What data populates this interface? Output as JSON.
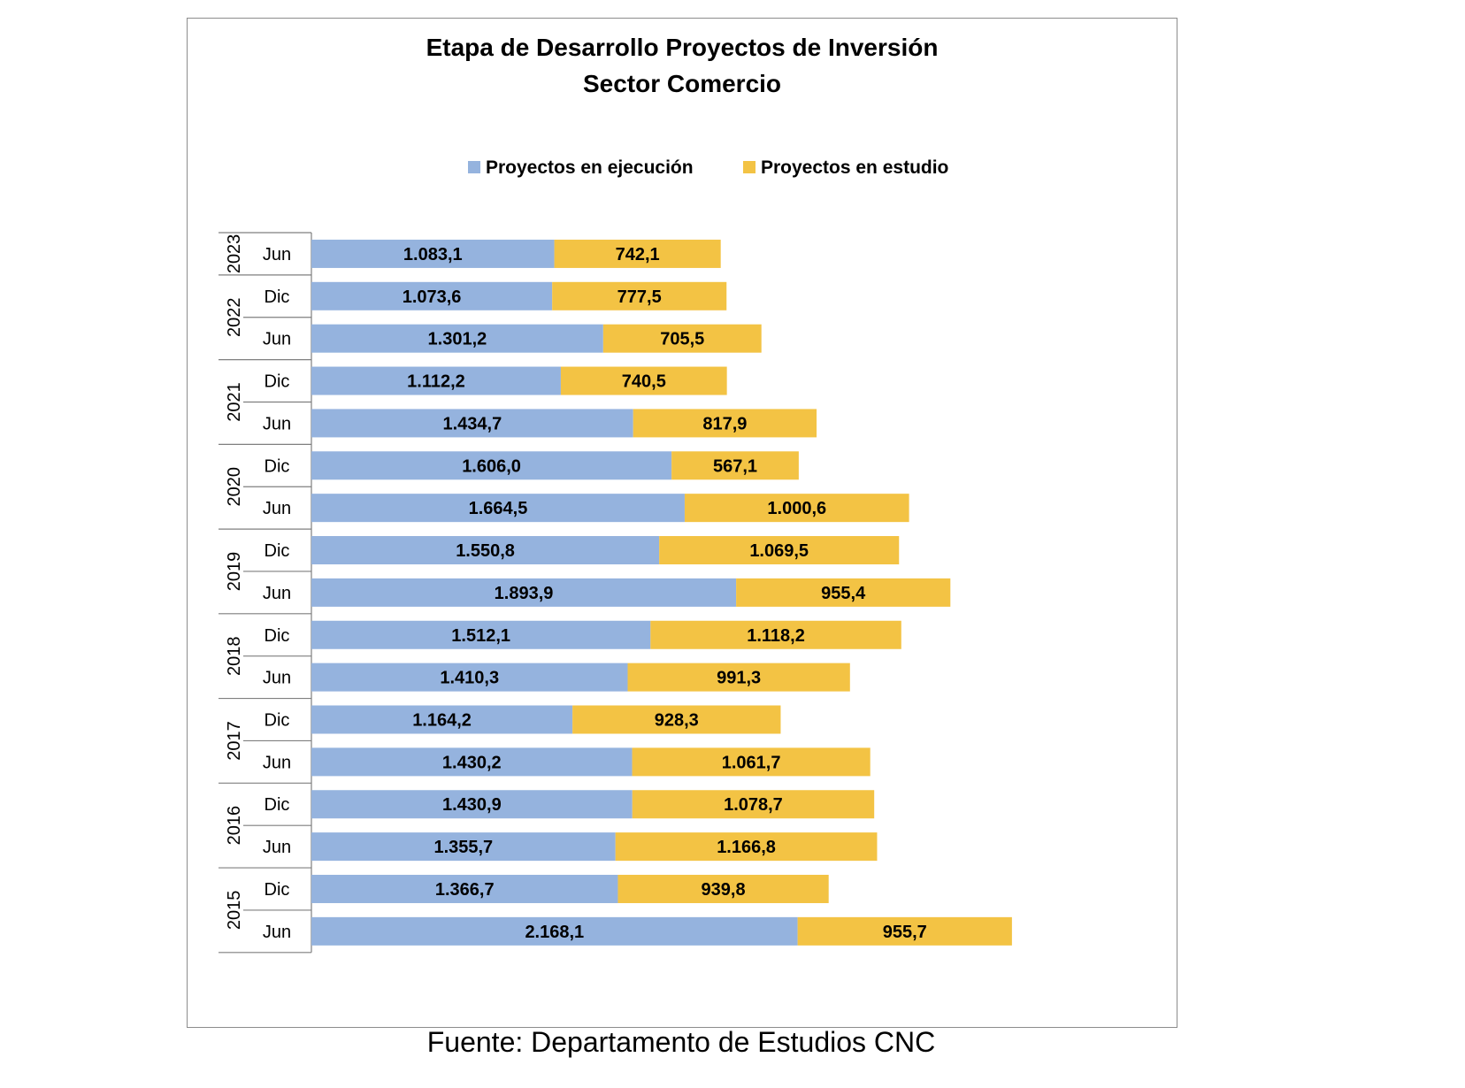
{
  "chart_data": {
    "type": "bar",
    "orientation": "horizontal",
    "stacked": true,
    "title": "Etapa de Desarrollo Proyectos de Inversión",
    "subtitle": "Sector Comercio",
    "legend_position": "top",
    "grid": false,
    "xlim": [
      0,
      3200
    ],
    "series": [
      {
        "name": "Proyectos en ejecución",
        "color": "#95b3de"
      },
      {
        "name": "Proyectos en estudio",
        "color": "#f3c344"
      }
    ],
    "groups": [
      {
        "year": "2023",
        "rows": [
          {
            "period": "Jun",
            "values": [
              1083.1,
              742.1
            ],
            "labels": [
              "1.083,1",
              "742,1"
            ]
          }
        ]
      },
      {
        "year": "2022",
        "rows": [
          {
            "period": "Dic",
            "values": [
              1073.6,
              777.5
            ],
            "labels": [
              "1.073,6",
              "777,5"
            ]
          },
          {
            "period": "Jun",
            "values": [
              1301.2,
              705.5
            ],
            "labels": [
              "1.301,2",
              "705,5"
            ]
          }
        ]
      },
      {
        "year": "2021",
        "rows": [
          {
            "period": "Dic",
            "values": [
              1112.2,
              740.5
            ],
            "labels": [
              "1.112,2",
              "740,5"
            ]
          },
          {
            "period": "Jun",
            "values": [
              1434.7,
              817.9
            ],
            "labels": [
              "1.434,7",
              "817,9"
            ]
          }
        ]
      },
      {
        "year": "2020",
        "rows": [
          {
            "period": "Dic",
            "values": [
              1606.0,
              567.1
            ],
            "labels": [
              "1.606,0",
              "567,1"
            ]
          },
          {
            "period": "Jun",
            "values": [
              1664.5,
              1000.6
            ],
            "labels": [
              "1.664,5",
              "1.000,6"
            ]
          }
        ]
      },
      {
        "year": "2019",
        "rows": [
          {
            "period": "Dic",
            "values": [
              1550.8,
              1069.5
            ],
            "labels": [
              "1.550,8",
              "1.069,5"
            ]
          },
          {
            "period": "Jun",
            "values": [
              1893.9,
              955.4
            ],
            "labels": [
              "1.893,9",
              "955,4"
            ]
          }
        ]
      },
      {
        "year": "2018",
        "rows": [
          {
            "period": "Dic",
            "values": [
              1512.1,
              1118.2
            ],
            "labels": [
              "1.512,1",
              "1.118,2"
            ]
          },
          {
            "period": "Jun",
            "values": [
              1410.3,
              991.3
            ],
            "labels": [
              "1.410,3",
              "991,3"
            ]
          }
        ]
      },
      {
        "year": "2017",
        "rows": [
          {
            "period": "Dic",
            "values": [
              1164.2,
              928.3
            ],
            "labels": [
              "1.164,2",
              "928,3"
            ]
          },
          {
            "period": "Jun",
            "values": [
              1430.2,
              1061.7
            ],
            "labels": [
              "1.430,2",
              "1.061,7"
            ]
          }
        ]
      },
      {
        "year": "2016",
        "rows": [
          {
            "period": "Dic",
            "values": [
              1430.9,
              1078.7
            ],
            "labels": [
              "1.430,9",
              "1.078,7"
            ]
          },
          {
            "period": "Jun",
            "values": [
              1355.7,
              1166.8
            ],
            "labels": [
              "1.355,7",
              "1.166,8"
            ]
          }
        ]
      },
      {
        "year": "2015",
        "rows": [
          {
            "period": "Dic",
            "values": [
              1366.7,
              939.8
            ],
            "labels": [
              "1.366,7",
              "939,8"
            ]
          },
          {
            "period": "Jun",
            "values": [
              2168.1,
              955.7
            ],
            "labels": [
              "2.168,1",
              "955,7"
            ]
          }
        ]
      }
    ]
  },
  "source_note": "Fuente: Departamento de Estudios CNC"
}
